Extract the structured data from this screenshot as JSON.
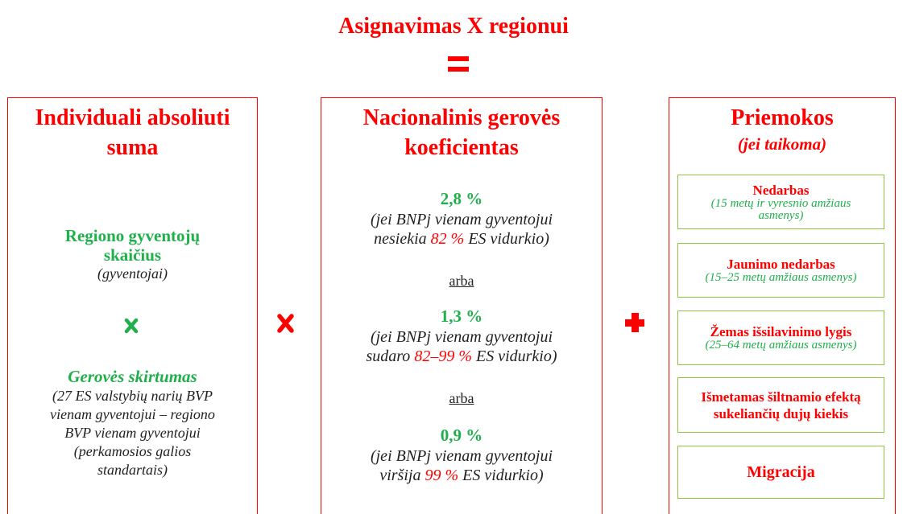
{
  "title": "Asignavimas X regionui",
  "boxes": [
    {
      "heading": [
        "Individuali absoliuti",
        "suma"
      ],
      "population": {
        "label": [
          "Regiono gyventojų",
          "skaičius"
        ],
        "unit": "(gyventojai)"
      },
      "gap": {
        "label": "Gerovės skirtumas",
        "note": [
          "(27 ES valstybių narių BVP",
          "vienam gyventojui – regiono",
          "BVP vienam gyventojui",
          "(perkamosios galios",
          "standartais)"
        ]
      }
    },
    {
      "heading": [
        "Nacionalinis gerovės",
        "koeficientas"
      ],
      "options": [
        {
          "rate": "2,8 %",
          "note": "(jei BNPj vienam gyventojui",
          "verb": "nesiekia",
          "threshold": "82 %",
          "tail": "ES vidurkio)"
        },
        {
          "rate": "1,3 %",
          "note": "(jei BNPj vienam gyventojui",
          "verb": "sudaro",
          "threshold": "82–99 %",
          "tail": "ES vidurkio)"
        },
        {
          "rate": "0,9 %",
          "note": "(jei BNPj vienam gyventojui",
          "verb": "viršija",
          "threshold": "99 %",
          "tail": "ES vidurkio)"
        }
      ],
      "separators": [
        "arba",
        "arba"
      ]
    },
    {
      "heading": [
        "Priemokos"
      ],
      "subheading": "(jei taikoma)",
      "items": [
        {
          "label": "Nedarbas",
          "note": "(15 metų ir vyresnio amžiaus asmenys)"
        },
        {
          "label": "Jaunimo nedarbas",
          "note": "(15–25 metų amžiaus asmenys)"
        },
        {
          "label": "Žemas išsilavinimo lygis",
          "note": "(25–64 metų amžiaus asmenys)"
        },
        {
          "label": "Išmetamas šiltnamio efektą sukeliančių dujų kiekis"
        },
        {
          "label": "Migracija"
        }
      ]
    }
  ]
}
